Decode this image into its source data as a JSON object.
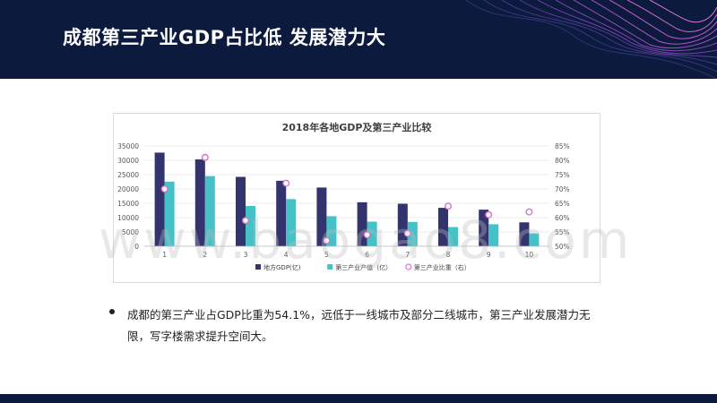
{
  "page": {
    "title": "成都第三产业GDP占比低 发展潜力大"
  },
  "chart_data": {
    "type": "bar",
    "title": "2018年各地GDP及第三产业比较",
    "categories": [
      "1",
      "2",
      "3",
      "4",
      "5",
      "6",
      "7",
      "8",
      "9",
      "10"
    ],
    "series": [
      {
        "name": "地方GDP(亿)",
        "type": "bar",
        "axis": "left",
        "color": "#33336e",
        "values": [
          32680,
          30320,
          24220,
          22860,
          20500,
          15360,
          14840,
          13410,
          12780,
          8350
        ]
      },
      {
        "name": "第三产业产值（亿）",
        "type": "bar",
        "axis": "left",
        "color": "#45c1c8",
        "values": [
          22570,
          24490,
          14080,
          16460,
          10500,
          8600,
          8500,
          6700,
          7700,
          4500
        ]
      },
      {
        "name": "第三产业比重（右）",
        "type": "scatter",
        "axis": "right",
        "color": "#d873c7",
        "values": [
          0.7,
          0.81,
          0.59,
          0.72,
          0.52,
          0.54,
          0.545,
          0.64,
          0.61,
          0.62
        ]
      }
    ],
    "y_left": {
      "min": 0,
      "max": 35000,
      "step": 5000,
      "ticks": [
        "0",
        "5000",
        "10000",
        "15000",
        "20000",
        "25000",
        "30000",
        "35000"
      ]
    },
    "y_right": {
      "min": 0.5,
      "max": 0.85,
      "step": 0.05,
      "ticks": [
        "50%",
        "55%",
        "60%",
        "65%",
        "70%",
        "75%",
        "80%",
        "85%"
      ]
    },
    "legend_position": "bottom",
    "grid": true
  },
  "watermark": "www.baogao8.com",
  "bullet": {
    "text": "成都的第三产业占GDP比重为54.1%，远低于一线城市及部分二线城市，第三产业发展潜力无限，写字楼需求提升空间大。"
  }
}
